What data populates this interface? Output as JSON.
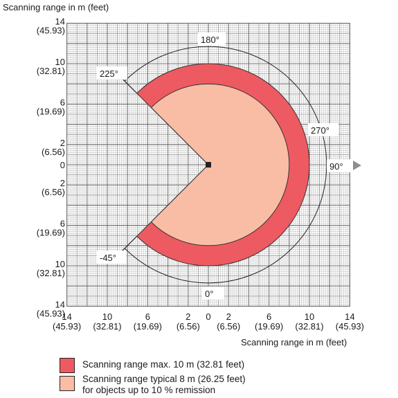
{
  "colors": {
    "max_range": "#ee5a61",
    "typical_range": "#f9bca5",
    "grid": "#b8b8b8",
    "grid_major": "#6a6a6a",
    "arrow": "#8e8e8e"
  },
  "axes": {
    "y_title": "Scanning range in m (feet)",
    "x_title": "Scanning range in m (feet)",
    "y_ticks": [
      {
        "m": "14",
        "ft": "(45.93)"
      },
      {
        "m": "10",
        "ft": "(32.81)"
      },
      {
        "m": "6",
        "ft": "(19.69)"
      },
      {
        "m": "2",
        "ft": "(6.56)"
      },
      {
        "m": "0",
        "ft": ""
      },
      {
        "m": "2",
        "ft": "(6.56)"
      },
      {
        "m": "6",
        "ft": "(19.69)"
      },
      {
        "m": "10",
        "ft": "(32.81)"
      },
      {
        "m": "14",
        "ft": "(45.93)"
      }
    ],
    "x_ticks": [
      {
        "m": "14",
        "ft": "(45.93)"
      },
      {
        "m": "10",
        "ft": "(32.81)"
      },
      {
        "m": "6",
        "ft": "(19.69)"
      },
      {
        "m": "2",
        "ft": "(6.56)"
      },
      {
        "m": "0",
        "ft": ""
      },
      {
        "m": "2",
        "ft": "(6.56)"
      },
      {
        "m": "6",
        "ft": "(19.69)"
      },
      {
        "m": "10",
        "ft": "(32.81)"
      },
      {
        "m": "14",
        "ft": "(45.93)"
      }
    ]
  },
  "angles": {
    "a180": "180°",
    "a225": "225°",
    "a270": "270°",
    "a90": "90°",
    "a_neg45": "-45°",
    "a0": "0°"
  },
  "ranges": {
    "max_m": 10,
    "typical_m": 8,
    "angle_start_deg": -45,
    "angle_end_deg": 225
  },
  "legend": {
    "max": "Scanning range max. 10 m (32.81 feet)",
    "typical_line1": "Scanning range typical 8 m (26.25 feet)",
    "typical_line2": "for objects up to 10 % remission"
  }
}
